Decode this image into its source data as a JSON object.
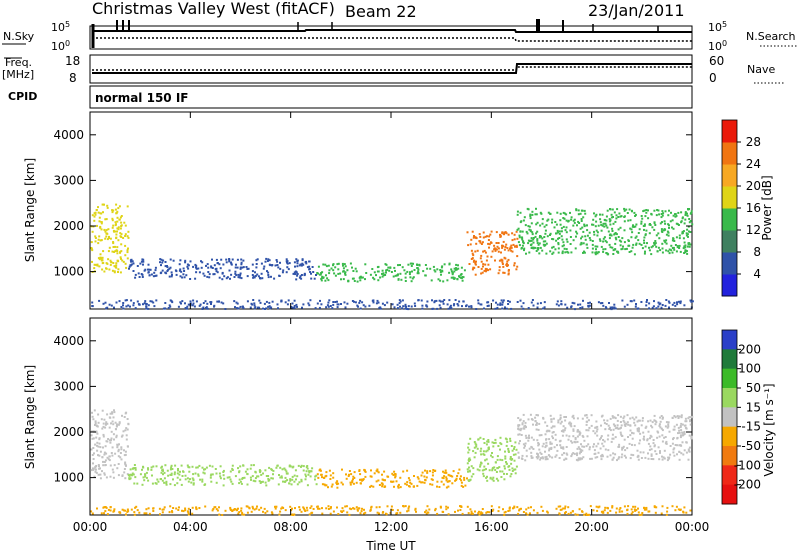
{
  "header": {
    "station": "Christmas Valley West (fitACF)",
    "beam": "Beam 22",
    "date": "23/Jan/2011"
  },
  "status_panels": {
    "nsky_label": "N.Sky",
    "nsky_ticks": [
      "10^5",
      "10^0"
    ],
    "nsearch_label": "N.Search",
    "nsearch_ticks": [
      "10^5",
      "10^0"
    ],
    "freq_label": "Freq.",
    "freq_unit": "[MHz]",
    "freq_ticks": [
      "18",
      "8"
    ],
    "nave_label": "Nave",
    "nave_ticks": [
      "60",
      "0"
    ],
    "cpid_label": "CPID",
    "cpid_value": "normal 150 IF"
  },
  "chart_data": [
    {
      "type": "heatmap",
      "title": "",
      "xlabel": "Time UT",
      "ylabel": "Slant Range [km]",
      "x_ticks": [
        "00:00",
        "04:00",
        "08:00",
        "12:00",
        "16:00",
        "20:00",
        "00:00"
      ],
      "y_ticks": [
        1000,
        2000,
        3000,
        4000
      ],
      "xlim_hours": [
        0,
        24
      ],
      "ylim_km": [
        180,
        4500
      ],
      "colorbar": {
        "label": "Power [dB]",
        "ticks": [
          4,
          8,
          12,
          16,
          20,
          24,
          28
        ],
        "colors": [
          "#2222dd",
          "#2f52a8",
          "#3f8060",
          "#39b94a",
          "#dfd417",
          "#f7a823",
          "#f07512",
          "#ea1a0a"
        ]
      },
      "features": [
        {
          "x_range": [
            0,
            1.5
          ],
          "range_km": [
            1000,
            2500
          ],
          "power_db": 18
        },
        {
          "x_range": [
            1.5,
            9
          ],
          "range_km": [
            850,
            1300
          ],
          "power_db": 6
        },
        {
          "x_range": [
            9,
            15
          ],
          "range_km": [
            800,
            1200
          ],
          "power_db": 14
        },
        {
          "x_range": [
            15,
            17
          ],
          "range_km": [
            950,
            1900
          ],
          "power_db": 24
        },
        {
          "x_range": [
            17,
            24
          ],
          "range_km": [
            1400,
            2400
          ],
          "power_db": 14
        },
        {
          "x_range": [
            0,
            24
          ],
          "range_km": [
            200,
            400
          ],
          "power_db": 6
        }
      ]
    },
    {
      "type": "heatmap",
      "title": "",
      "xlabel": "Time UT",
      "ylabel": "Slant Range [km]",
      "x_ticks": [
        "00:00",
        "04:00",
        "08:00",
        "12:00",
        "16:00",
        "20:00",
        "00:00"
      ],
      "y_ticks": [
        1000,
        2000,
        3000,
        4000
      ],
      "xlim_hours": [
        0,
        24
      ],
      "ylim_km": [
        180,
        4500
      ],
      "colorbar": {
        "label": "Velocity [m s⁻¹]",
        "ticks": [
          200,
          100,
          50,
          15,
          -15,
          -50,
          -100,
          -200
        ],
        "colors": [
          "#2a3fc8",
          "#1f7a3a",
          "#3cba28",
          "#9ad860",
          "#c2c2c2",
          "#f6a800",
          "#f07a10",
          "#ef2818",
          "#e61010"
        ]
      },
      "features": [
        {
          "x_range": [
            0,
            1.5
          ],
          "range_km": [
            1000,
            2500
          ],
          "velocity": 0
        },
        {
          "x_range": [
            1.5,
            9
          ],
          "range_km": [
            850,
            1300
          ],
          "velocity": 30
        },
        {
          "x_range": [
            9,
            15
          ],
          "range_km": [
            800,
            1200
          ],
          "velocity": -40
        },
        {
          "x_range": [
            15,
            17
          ],
          "range_km": [
            950,
            1900
          ],
          "velocity": 30
        },
        {
          "x_range": [
            17,
            24
          ],
          "range_km": [
            1400,
            2400
          ],
          "velocity": 0
        },
        {
          "x_range": [
            0,
            24
          ],
          "range_km": [
            200,
            400
          ],
          "velocity": -20
        }
      ]
    }
  ]
}
